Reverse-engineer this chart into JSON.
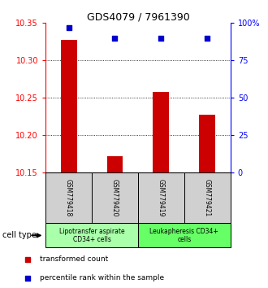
{
  "title": "GDS4079 / 7961390",
  "samples": [
    "GSM779418",
    "GSM779420",
    "GSM779419",
    "GSM779421"
  ],
  "red_values": [
    10.328,
    10.172,
    10.258,
    10.228
  ],
  "blue_values": [
    97,
    90,
    90,
    90
  ],
  "ylim_left": [
    10.15,
    10.35
  ],
  "ylim_right": [
    0,
    100
  ],
  "yticks_left": [
    10.15,
    10.2,
    10.25,
    10.3,
    10.35
  ],
  "yticks_right": [
    0,
    25,
    50,
    75,
    100
  ],
  "ytick_right_labels": [
    "0",
    "25",
    "50",
    "75",
    "100%"
  ],
  "bar_color": "#cc0000",
  "marker_color": "#0000cc",
  "bar_width": 0.35,
  "groups": [
    {
      "label": "Lipotransfer aspirate\nCD34+ cells",
      "samples": [
        0,
        1
      ],
      "color": "#aaffaa"
    },
    {
      "label": "Leukapheresis CD34+\ncells",
      "samples": [
        2,
        3
      ],
      "color": "#66ff66"
    }
  ],
  "cell_type_label": "cell type",
  "legend_red": "transformed count",
  "legend_blue": "percentile rank within the sample",
  "sample_box_color": "#d0d0d0"
}
